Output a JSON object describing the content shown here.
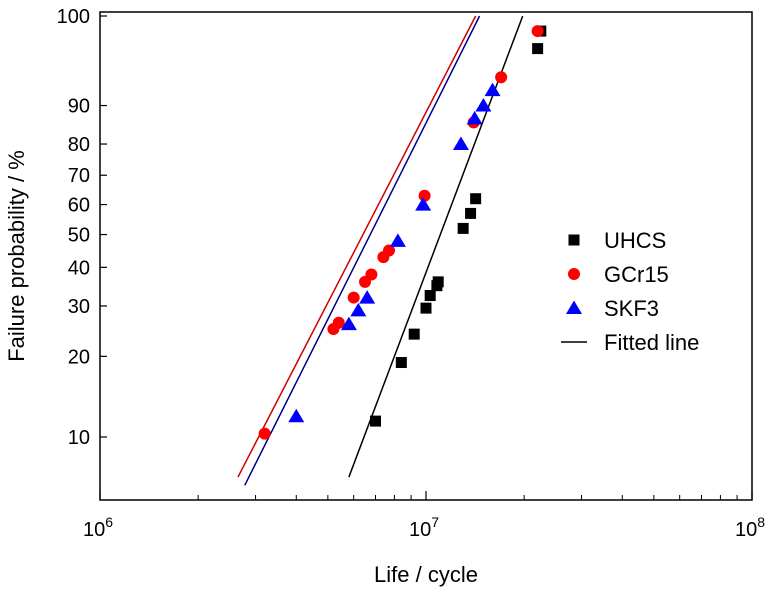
{
  "chart_data": {
    "type": "scatter",
    "xlabel": "Life / cycle",
    "ylabel": "Failure probability / %",
    "x_scale": "log",
    "y_scale": "weibull",
    "xlim": [
      1000000,
      100000000
    ],
    "ylim": [
      6.5,
      100
    ],
    "x_ticks": [
      {
        "value": 1000000,
        "base": "10",
        "exp": "6"
      },
      {
        "value": 10000000,
        "base": "10",
        "exp": "7"
      },
      {
        "value": 100000000,
        "base": "10",
        "exp": "8"
      }
    ],
    "y_ticks": [
      {
        "value": 10,
        "label": "10"
      },
      {
        "value": 20,
        "label": "20"
      },
      {
        "value": 30,
        "label": "30"
      },
      {
        "value": 40,
        "label": "40"
      },
      {
        "value": 50,
        "label": "50"
      },
      {
        "value": 60,
        "label": "60"
      },
      {
        "value": 70,
        "label": "70"
      },
      {
        "value": 80,
        "label": "80"
      },
      {
        "value": 90,
        "label": "90"
      },
      {
        "value": 99.5,
        "label": "100"
      }
    ],
    "grid": false,
    "legend_position": "right",
    "series": [
      {
        "name": "UHCS",
        "marker": "square",
        "color": "#000000",
        "points": [
          {
            "x": 7000000,
            "y": 11.5
          },
          {
            "x": 8400000,
            "y": 19
          },
          {
            "x": 9200000,
            "y": 24
          },
          {
            "x": 10000000,
            "y": 29.5
          },
          {
            "x": 10300000,
            "y": 32.5
          },
          {
            "x": 10800000,
            "y": 35
          },
          {
            "x": 10900000,
            "y": 36
          },
          {
            "x": 13000000,
            "y": 52
          },
          {
            "x": 13700000,
            "y": 57
          },
          {
            "x": 14200000,
            "y": 62
          },
          {
            "x": 22000000,
            "y": 98
          },
          {
            "x": 22500000,
            "y": 99
          }
        ]
      },
      {
        "name": "GCr15",
        "marker": "circle",
        "color": "#ff0000",
        "points": [
          {
            "x": 3200000,
            "y": 10.3
          },
          {
            "x": 5200000,
            "y": 25
          },
          {
            "x": 5400000,
            "y": 26.3
          },
          {
            "x": 6000000,
            "y": 32
          },
          {
            "x": 6500000,
            "y": 36
          },
          {
            "x": 6800000,
            "y": 38
          },
          {
            "x": 7400000,
            "y": 43
          },
          {
            "x": 7700000,
            "y": 45
          },
          {
            "x": 9900000,
            "y": 63
          },
          {
            "x": 14000000,
            "y": 86
          },
          {
            "x": 17000000,
            "y": 95
          },
          {
            "x": 22000000,
            "y": 99
          }
        ]
      },
      {
        "name": "SKF3",
        "marker": "triangle",
        "color": "#0000ff",
        "points": [
          {
            "x": 4000000,
            "y": 12
          },
          {
            "x": 5800000,
            "y": 26
          },
          {
            "x": 6200000,
            "y": 29
          },
          {
            "x": 6600000,
            "y": 32
          },
          {
            "x": 8200000,
            "y": 48
          },
          {
            "x": 9800000,
            "y": 60
          },
          {
            "x": 12800000,
            "y": 80
          },
          {
            "x": 14100000,
            "y": 87
          },
          {
            "x": 15000000,
            "y": 90
          },
          {
            "x": 16000000,
            "y": 93
          }
        ]
      }
    ],
    "fitted_lines": [
      {
        "series": "UHCS",
        "color": "#000000",
        "from": {
          "x": 5800000,
          "y": 7
        },
        "to": {
          "x": 19800000,
          "y": 99.5
        }
      },
      {
        "series": "GCr15",
        "color": "#cc0000",
        "from": {
          "x": 2650000,
          "y": 7
        },
        "to": {
          "x": 14200000,
          "y": 99.5
        }
      },
      {
        "series": "SKF3",
        "color": "#00008b",
        "from": {
          "x": 2780000,
          "y": 6.5
        },
        "to": {
          "x": 14600000,
          "y": 99.5
        }
      }
    ],
    "legend": [
      {
        "label": "UHCS",
        "marker": "square",
        "color": "#000000"
      },
      {
        "label": "GCr15",
        "marker": "circle",
        "color": "#ff0000"
      },
      {
        "label": "SKF3",
        "marker": "triangle",
        "color": "#0000ff"
      },
      {
        "label": "Fitted line",
        "marker": "line",
        "color": "#000000"
      }
    ]
  }
}
